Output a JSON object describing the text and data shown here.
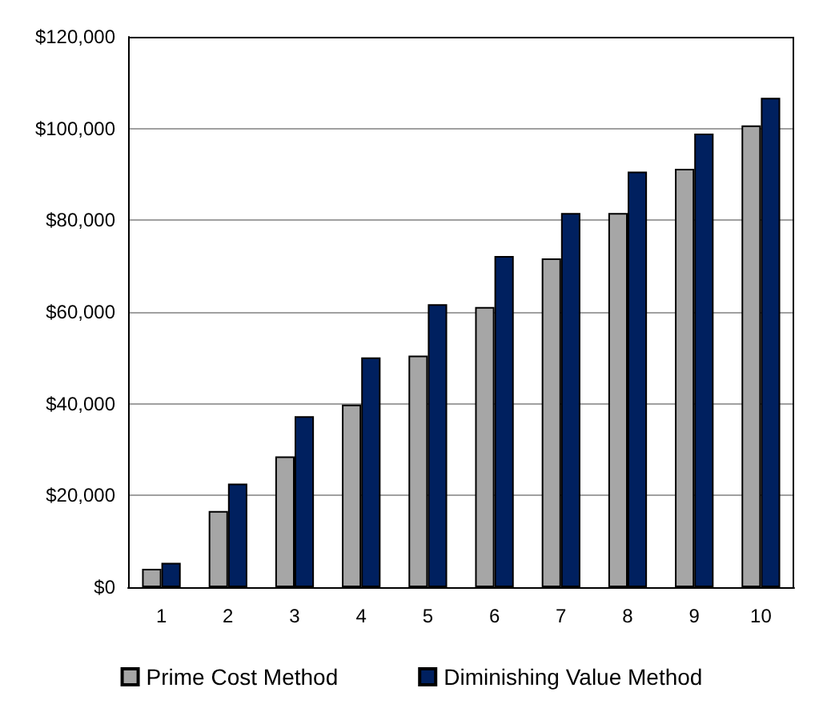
{
  "chart_data": {
    "type": "bar",
    "categories": [
      "1",
      "2",
      "3",
      "4",
      "5",
      "6",
      "7",
      "8",
      "9",
      "10"
    ],
    "series": [
      {
        "name": "Prime Cost Method",
        "color": "#a6a6a6",
        "values": [
          4000,
          16600,
          28500,
          39800,
          50500,
          61100,
          71700,
          81600,
          91200,
          100700
        ]
      },
      {
        "name": "Diminishing Value Method",
        "color": "#00205f",
        "values": [
          5300,
          22600,
          37300,
          50100,
          61700,
          72200,
          81600,
          90600,
          98900,
          106700
        ]
      }
    ],
    "ylim": [
      0,
      120000
    ],
    "yticks": [
      {
        "value": 0,
        "label": "$0"
      },
      {
        "value": 20000,
        "label": "$20,000"
      },
      {
        "value": 40000,
        "label": "$40,000"
      },
      {
        "value": 60000,
        "label": "$60,000"
      },
      {
        "value": 80000,
        "label": "$80,000"
      },
      {
        "value": 100000,
        "label": "$100,000"
      },
      {
        "value": 120000,
        "label": "$120,000"
      }
    ],
    "grid": "y",
    "legend": "bottom"
  }
}
